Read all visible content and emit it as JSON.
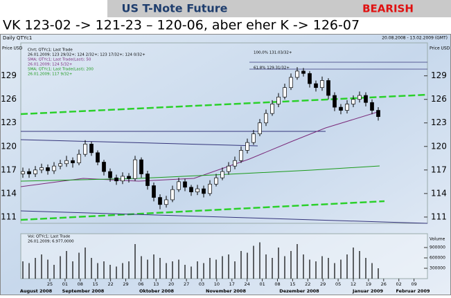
{
  "header": {
    "title": "US T-Note Future",
    "signal": "BEARISH",
    "subtitle": "VK 123-02 -> 121-23 – 120-06, aber eher K -> 126-07"
  },
  "chart_data": {
    "type": "candlestick",
    "instrument": "Daily QTYc1",
    "date_range": "20.08.2008 - 13.02.2009 (GMT)",
    "axis_label": "Price USD",
    "legend": [
      {
        "text": "Chrt; QTYc1; Last Trade",
        "color": "#000000"
      },
      {
        "text": "26.01.2009; 123 29/32+; 124 2/32+; 123 17/32+; 124 0/32+",
        "color": "#000000"
      },
      {
        "text": "SMA; QTYc1; Last Trade(Last); 50",
        "color": "#7a2a7a"
      },
      {
        "text": "26.01.2009; 124 5/32+",
        "color": "#7a2a7a"
      },
      {
        "text": "SMA; QTYc1; Last Trade(Last); 200",
        "color": "#1a9a1a"
      },
      {
        "text": "26.01.2009; 117 9/32+",
        "color": "#1a9a1a"
      }
    ],
    "fib_labels": [
      "100,0% 131.03/32+",
      "61,8% 129.31/32+"
    ],
    "open": [
      116.5,
      116.8,
      116.5,
      117.0,
      117.3,
      116.9,
      117.5,
      117.8,
      118.2,
      117.9,
      119.0,
      120.3,
      119.2,
      118.0,
      116.8,
      116.0,
      115.6,
      116.2,
      115.9,
      118.3,
      116.5,
      115.0,
      113.5,
      112.6,
      113.2,
      114.5,
      115.5,
      114.8,
      114.2,
      114.6,
      114.0,
      115.2,
      116.0,
      116.8,
      117.5,
      118.2,
      119.5,
      120.5,
      121.6,
      123.0,
      124.2,
      125.4,
      126.3,
      127.5,
      128.8,
      129.6,
      129.3,
      128.0,
      127.5,
      128.4,
      126.5,
      125.0,
      124.6,
      125.4,
      126.0,
      126.5,
      125.6,
      124.6
    ],
    "high": [
      117.3,
      117.2,
      117.5,
      117.8,
      117.7,
      118.0,
      118.3,
      118.8,
      118.6,
      119.6,
      120.8,
      120.6,
      119.5,
      118.3,
      117.2,
      116.4,
      116.7,
      116.6,
      118.8,
      118.6,
      116.9,
      115.4,
      113.9,
      113.7,
      115.0,
      116.0,
      115.9,
      115.1,
      115.1,
      115.0,
      115.7,
      116.5,
      117.3,
      118.0,
      118.7,
      120.0,
      121.0,
      122.1,
      123.5,
      124.7,
      125.9,
      126.8,
      128.0,
      129.3,
      130.1,
      130.0,
      129.6,
      128.4,
      128.9,
      128.7,
      126.9,
      125.4,
      125.9,
      126.5,
      127.0,
      126.9,
      126.0,
      125.0
    ],
    "low": [
      116.0,
      116.0,
      116.1,
      116.6,
      116.4,
      116.5,
      117.1,
      117.4,
      117.3,
      117.6,
      118.7,
      118.8,
      117.6,
      116.3,
      115.5,
      115.1,
      115.2,
      115.4,
      115.6,
      116.0,
      114.5,
      113.0,
      112.0,
      112.2,
      112.9,
      114.2,
      114.3,
      113.7,
      113.8,
      113.5,
      113.7,
      114.9,
      115.7,
      116.4,
      117.1,
      117.9,
      119.1,
      120.2,
      121.3,
      122.6,
      123.9,
      125.0,
      126.0,
      127.2,
      128.5,
      128.9,
      127.5,
      127.0,
      127.1,
      126.0,
      124.5,
      124.1,
      124.2,
      125.0,
      125.6,
      125.1,
      124.1,
      123.3
    ],
    "close": [
      116.8,
      116.5,
      117.0,
      117.3,
      116.9,
      117.5,
      117.8,
      118.2,
      117.9,
      119.0,
      120.3,
      119.2,
      118.0,
      116.8,
      116.0,
      115.6,
      116.2,
      115.9,
      118.3,
      116.5,
      115.0,
      113.5,
      112.6,
      113.2,
      114.5,
      115.5,
      114.8,
      114.2,
      114.6,
      114.0,
      115.2,
      116.0,
      116.8,
      117.5,
      118.2,
      119.5,
      120.5,
      121.6,
      123.0,
      124.2,
      125.4,
      126.3,
      127.5,
      128.8,
      129.6,
      129.3,
      128.0,
      127.5,
      128.4,
      126.5,
      125.0,
      124.6,
      125.4,
      126.0,
      126.5,
      125.6,
      124.6,
      123.8
    ],
    "ylim": [
      110.2,
      133.2
    ],
    "yticks": [
      111,
      114,
      117,
      120,
      123,
      126,
      129
    ],
    "volume_legend": [
      "Vol; QTYc1; Last Trade",
      "26.01.2009; 6.977,0000"
    ],
    "volume_label": "Volume",
    "volume": [
      500000,
      450000,
      600000,
      700000,
      550000,
      400000,
      650000,
      800000,
      500000,
      750000,
      900000,
      600000,
      450000,
      500000,
      400000,
      350000,
      450000,
      500000,
      1000000,
      650000,
      550000,
      700000,
      600000,
      450000,
      500000,
      550000,
      400000,
      350000,
      500000,
      450000,
      600000,
      550000,
      650000,
      700000,
      500000,
      800000,
      750000,
      950000,
      1050000,
      700000,
      600000,
      900000,
      650000,
      800000,
      1000000,
      700000,
      550000,
      500000,
      650000,
      600000,
      450000,
      550000,
      700000,
      900000,
      800000,
      600000,
      450000,
      300000
    ],
    "volume_ylim": [
      0,
      1200000
    ],
    "volume_yticks": [
      300000,
      600000,
      900000
    ],
    "xtick_labels": [
      "25",
      "01",
      "08",
      "15",
      "22",
      "29",
      "06",
      "13",
      "20",
      "27",
      "03",
      "10",
      "17",
      "24",
      "01",
      "08",
      "15",
      "22",
      "29",
      "05",
      "12",
      "19",
      "26",
      "02",
      "09"
    ],
    "months": [
      "August 2008",
      "September 2008",
      "Oktober 2008",
      "November 2008",
      "Dezember 2008",
      "Januar 2009",
      "Februar 2009"
    ],
    "color_up": "#ffffff",
    "color_down": "#000000"
  }
}
